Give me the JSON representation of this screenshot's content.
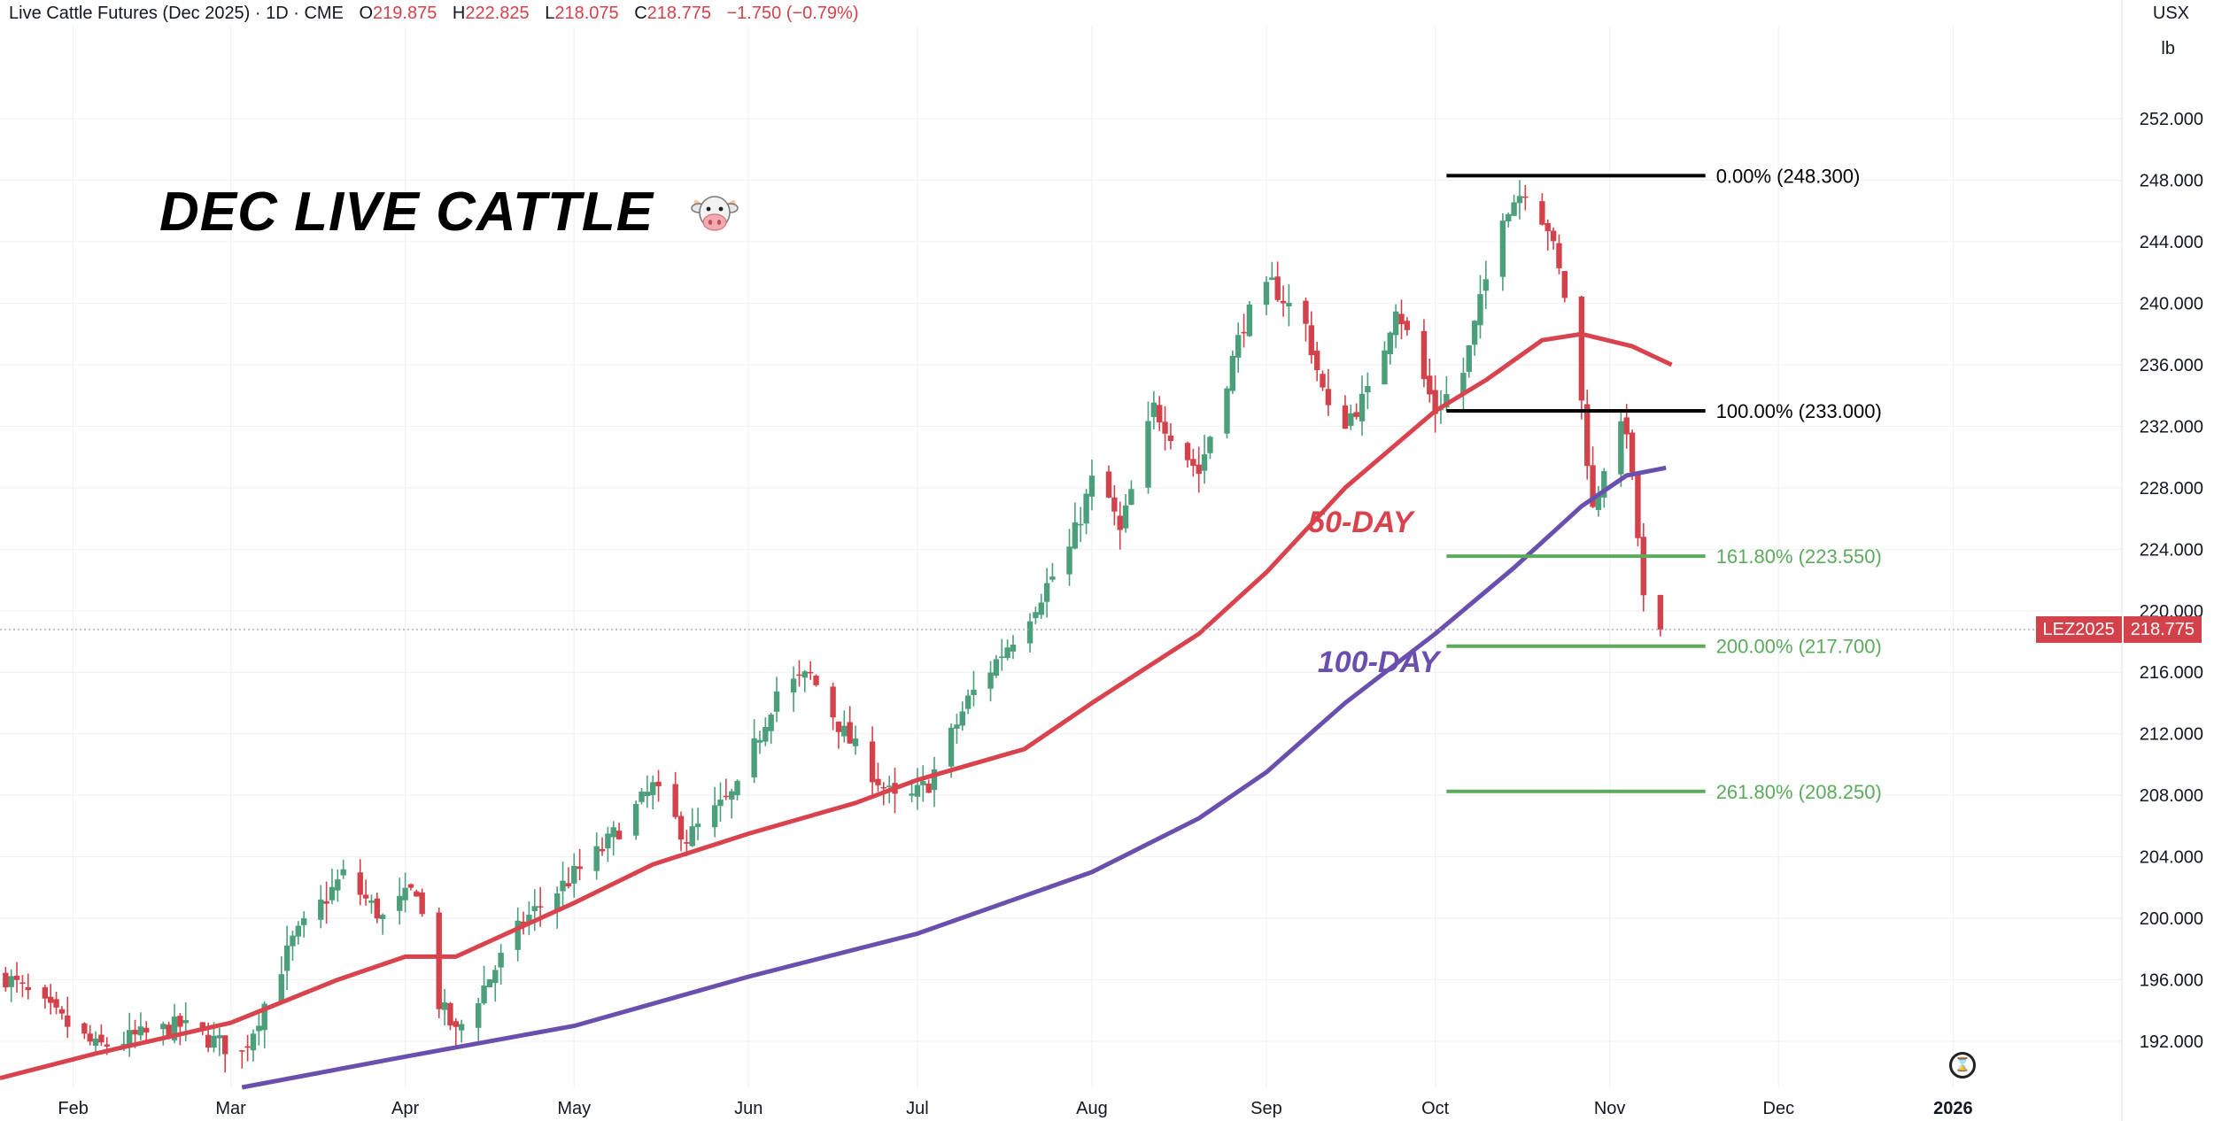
{
  "header": {
    "symbol_title": "Live Cattle Futures (Dec 2025) · 1D · CME",
    "open_label": "O",
    "open": "219.875",
    "high_label": "H",
    "high": "222.825",
    "low_label": "L",
    "low": "218.075",
    "close_label": "C",
    "close": "218.775",
    "change": "−1.750 (−0.79%)"
  },
  "price_scale": {
    "currency": "USX",
    "unit": "lb"
  },
  "title": "DEC LIVE CATTLE",
  "title_icon": "cow-face-icon",
  "last_price": {
    "ticker": "LEZ2025",
    "value": "218.775"
  },
  "colors": {
    "up": "#4c9f7b",
    "down": "#d3424b",
    "ma50": "#d9434d",
    "ma100": "#6b4fae",
    "fib_black": "#000000",
    "fib_green": "#5cab5c"
  },
  "chart_data": {
    "type": "candlestick",
    "x_range": [
      "2025-01-19",
      "2026-01-31"
    ],
    "y_range": [
      189.0,
      258.0
    ],
    "y_ticks": [
      "192.000",
      "196.000",
      "200.000",
      "204.000",
      "208.000",
      "212.000",
      "216.000",
      "220.000",
      "224.000",
      "228.000",
      "232.000",
      "236.000",
      "240.000",
      "244.000",
      "248.000",
      "252.000"
    ],
    "x_ticks": [
      {
        "label": "Feb",
        "date": "2025-02-01"
      },
      {
        "label": "Mar",
        "date": "2025-03-01"
      },
      {
        "label": "Apr",
        "date": "2025-04-01"
      },
      {
        "label": "May",
        "date": "2025-05-01"
      },
      {
        "label": "Jun",
        "date": "2025-06-01"
      },
      {
        "label": "Jul",
        "date": "2025-07-01"
      },
      {
        "label": "Aug",
        "date": "2025-08-01"
      },
      {
        "label": "Sep",
        "date": "2025-09-01"
      },
      {
        "label": "Oct",
        "date": "2025-10-01"
      },
      {
        "label": "Nov",
        "date": "2025-11-01"
      },
      {
        "label": "Dec",
        "date": "2025-12-01"
      },
      {
        "label": "2026",
        "date": "2026-01-01"
      }
    ],
    "price_anchors": [
      [
        "2025-01-20",
        196.2
      ],
      [
        "2025-02-05",
        191.6
      ],
      [
        "2025-02-20",
        193.0
      ],
      [
        "2025-03-03",
        191.2
      ],
      [
        "2025-03-12",
        198.5
      ],
      [
        "2025-03-21",
        202.8
      ],
      [
        "2025-03-28",
        200.0
      ],
      [
        "2025-04-03",
        202.0
      ],
      [
        "2025-04-07",
        194.5
      ],
      [
        "2025-04-10",
        192.5
      ],
      [
        "2025-04-22",
        199.8
      ],
      [
        "2025-05-06",
        204.5
      ],
      [
        "2025-05-15",
        208.5
      ],
      [
        "2025-05-21",
        205.2
      ],
      [
        "2025-05-30",
        208.3
      ],
      [
        "2025-06-06",
        214.8
      ],
      [
        "2025-06-12",
        215.8
      ],
      [
        "2025-06-18",
        212.0
      ],
      [
        "2025-06-24",
        209.0
      ],
      [
        "2025-06-28",
        207.2
      ],
      [
        "2025-07-03",
        208.8
      ],
      [
        "2025-07-10",
        214.2
      ],
      [
        "2025-07-20",
        219.3
      ],
      [
        "2025-07-28",
        224.0
      ],
      [
        "2025-08-02",
        229.5
      ],
      [
        "2025-08-06",
        225.0
      ],
      [
        "2025-08-12",
        233.2
      ],
      [
        "2025-08-20",
        229.0
      ],
      [
        "2025-08-28",
        238.8
      ],
      [
        "2025-09-02",
        241.2
      ],
      [
        "2025-09-08",
        238.5
      ],
      [
        "2025-09-13",
        231.5
      ],
      [
        "2025-09-20",
        234.5
      ],
      [
        "2025-09-24",
        240.0
      ],
      [
        "2025-10-01",
        233.0
      ],
      [
        "2025-10-06",
        235.5
      ],
      [
        "2025-10-13",
        246.0
      ],
      [
        "2025-10-17",
        247.5
      ],
      [
        "2025-10-21",
        245.0
      ],
      [
        "2025-10-25",
        239.0
      ],
      [
        "2025-10-27",
        233.5
      ],
      [
        "2025-10-29",
        226.5
      ],
      [
        "2025-11-01",
        231.0
      ],
      [
        "2025-11-04",
        232.0
      ],
      [
        "2025-11-06",
        224.8
      ],
      [
        "2025-11-07",
        220.6
      ],
      [
        "2025-11-10",
        218.775
      ]
    ],
    "ma50": [
      [
        "2025-01-19",
        189.6
      ],
      [
        "2025-02-05",
        191.2
      ],
      [
        "2025-03-01",
        193.2
      ],
      [
        "2025-03-20",
        196.0
      ],
      [
        "2025-04-01",
        197.5
      ],
      [
        "2025-04-10",
        197.5
      ],
      [
        "2025-05-01",
        201.0
      ],
      [
        "2025-05-15",
        203.5
      ],
      [
        "2025-06-01",
        205.5
      ],
      [
        "2025-06-20",
        207.5
      ],
      [
        "2025-07-01",
        209.0
      ],
      [
        "2025-07-20",
        211.0
      ],
      [
        "2025-08-01",
        214.0
      ],
      [
        "2025-08-20",
        218.5
      ],
      [
        "2025-09-01",
        222.5
      ],
      [
        "2025-09-15",
        228.0
      ],
      [
        "2025-10-01",
        233.0
      ],
      [
        "2025-10-10",
        235.0
      ],
      [
        "2025-10-20",
        237.6
      ],
      [
        "2025-10-27",
        238.0
      ],
      [
        "2025-11-05",
        237.2
      ],
      [
        "2025-11-12",
        236.0
      ]
    ],
    "ma100": [
      [
        "2025-03-03",
        189.0
      ],
      [
        "2025-04-01",
        191.0
      ],
      [
        "2025-05-01",
        193.0
      ],
      [
        "2025-06-01",
        196.2
      ],
      [
        "2025-07-01",
        199.0
      ],
      [
        "2025-08-01",
        203.0
      ],
      [
        "2025-08-20",
        206.5
      ],
      [
        "2025-09-01",
        209.5
      ],
      [
        "2025-09-15",
        214.0
      ],
      [
        "2025-10-01",
        218.5
      ],
      [
        "2025-10-15",
        222.8
      ],
      [
        "2025-10-27",
        226.8
      ],
      [
        "2025-11-04",
        228.8
      ],
      [
        "2025-11-11",
        229.3
      ]
    ],
    "ma_labels": [
      {
        "key": "ma50",
        "text": "50-DAY",
        "date": "2025-09-10",
        "price": 225.6
      },
      {
        "key": "ma100",
        "text": "100-DAY",
        "date": "2025-09-12",
        "price": 216.5
      }
    ],
    "fib_levels": [
      {
        "label": "0.00% (248.300)",
        "price": 248.3,
        "color": "black"
      },
      {
        "label": "100.00% (233.000)",
        "price": 233.0,
        "color": "black"
      },
      {
        "label": "161.80% (223.550)",
        "price": 223.55,
        "color": "green"
      },
      {
        "label": "200.00% (217.700)",
        "price": 217.7,
        "color": "green"
      },
      {
        "label": "261.80% (208.250)",
        "price": 208.25,
        "color": "green"
      }
    ],
    "fib_range": [
      "2025-10-03",
      "2025-11-18"
    ]
  }
}
